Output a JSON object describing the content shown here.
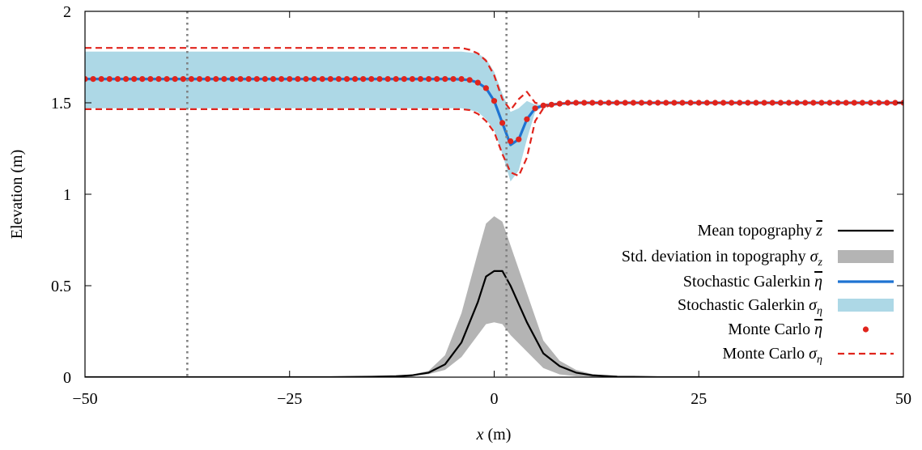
{
  "chart_data": {
    "type": "line",
    "xlabel_var": "x",
    "xlabel_unit": "(m)",
    "ylabel": "Elevation (m)",
    "xlim": [
      -50,
      50
    ],
    "ylim": [
      0,
      2
    ],
    "x_ticks": [
      -50,
      -25,
      0,
      25,
      50
    ],
    "x_tick_labels": [
      "−50",
      "−25",
      "0",
      "25",
      "50"
    ],
    "y_ticks": [
      0,
      0.5,
      1,
      1.5,
      2
    ],
    "y_tick_labels": [
      "0",
      "0.5",
      "1",
      "1.5",
      "2"
    ],
    "grid": false,
    "legend_position": "bottom-right",
    "vertical_lines_x": [
      -37.5,
      1.5
    ],
    "colors": {
      "mean_topography": "#000000",
      "std_topography": "#b4b4b4",
      "galerkin_mean": "#1e73d2",
      "galerkin_std": "#add8e6",
      "mc_mean": "#e0241c",
      "mc_std": "#e0241c",
      "vlines": "#808080"
    },
    "legend": [
      {
        "key": "mean_topography",
        "text": "Mean topography ",
        "sym": "z",
        "bar": true,
        "sub": ""
      },
      {
        "key": "std_topography",
        "text": "Std. deviation in topography ",
        "sym": "σ",
        "bar": false,
        "sub": "z"
      },
      {
        "key": "galerkin_mean",
        "text": "Stochastic Galerkin ",
        "sym": "η",
        "bar": true,
        "sub": ""
      },
      {
        "key": "galerkin_std",
        "text": "Stochastic Galerkin ",
        "sym": "σ",
        "bar": false,
        "sub": "η"
      },
      {
        "key": "mc_mean",
        "text": "Monte Carlo ",
        "sym": "η",
        "bar": true,
        "sub": ""
      },
      {
        "key": "mc_std",
        "text": "Monte Carlo ",
        "sym": "σ",
        "bar": false,
        "sub": "η"
      }
    ],
    "series": {
      "mean_topography": {
        "x": [
          -50,
          -20,
          -15,
          -12,
          -10,
          -8,
          -6,
          -4,
          -2,
          -1,
          0,
          1,
          2,
          4,
          6,
          8,
          10,
          12,
          15,
          20,
          50
        ],
        "y": [
          0,
          0,
          0.002,
          0.005,
          0.01,
          0.025,
          0.07,
          0.19,
          0.41,
          0.55,
          0.58,
          0.58,
          0.5,
          0.3,
          0.13,
          0.06,
          0.025,
          0.01,
          0.003,
          0,
          0
        ]
      },
      "std_topography": {
        "x": [
          -50,
          -20,
          -15,
          -12,
          -10,
          -8,
          -6,
          -4,
          -2,
          -1,
          0,
          1,
          2,
          4,
          6,
          8,
          10,
          12,
          15,
          20,
          50
        ],
        "lower": [
          0,
          0,
          0.001,
          0.003,
          0.007,
          0.017,
          0.04,
          0.11,
          0.23,
          0.29,
          0.3,
          0.29,
          0.23,
          0.14,
          0.05,
          0.015,
          0.005,
          0.002,
          0,
          0,
          0
        ],
        "upper": [
          0,
          0,
          0.003,
          0.008,
          0.015,
          0.035,
          0.12,
          0.35,
          0.68,
          0.84,
          0.88,
          0.85,
          0.72,
          0.46,
          0.2,
          0.09,
          0.04,
          0.017,
          0.005,
          0,
          0
        ]
      },
      "galerkin_mean": {
        "x": [
          -50,
          -5,
          -3,
          -2,
          -1,
          0,
          1,
          2,
          3,
          4,
          5,
          6,
          7,
          8,
          10,
          50
        ],
        "y": [
          1.63,
          1.63,
          1.625,
          1.61,
          1.58,
          1.51,
          1.39,
          1.27,
          1.3,
          1.41,
          1.47,
          1.485,
          1.49,
          1.495,
          1.5,
          1.5
        ]
      },
      "galerkin_std": {
        "x": [
          -50,
          -4,
          -2,
          -1,
          0,
          1,
          2,
          3,
          4,
          5,
          6,
          7,
          8,
          10,
          50
        ],
        "lower": [
          1.47,
          1.47,
          1.45,
          1.41,
          1.35,
          1.22,
          1.07,
          1.13,
          1.3,
          1.45,
          1.48,
          1.49,
          1.495,
          1.5,
          1.5
        ],
        "upper": [
          1.78,
          1.78,
          1.77,
          1.74,
          1.67,
          1.55,
          1.45,
          1.47,
          1.51,
          1.49,
          1.49,
          1.49,
          1.495,
          1.5,
          1.5
        ]
      },
      "mc_mean": {
        "x": [
          -50,
          -49,
          -48,
          -47,
          -46,
          -45,
          -44,
          -43,
          -42,
          -41,
          -40,
          -39,
          -38,
          -37,
          -36,
          -35,
          -34,
          -33,
          -32,
          -31,
          -30,
          -29,
          -28,
          -27,
          -26,
          -25,
          -24,
          -23,
          -22,
          -21,
          -20,
          -19,
          -18,
          -17,
          -16,
          -15,
          -14,
          -13,
          -12,
          -11,
          -10,
          -9,
          -8,
          -7,
          -6,
          -5,
          -4,
          -3,
          -2,
          -1,
          0,
          1,
          2,
          3,
          4,
          5,
          6,
          7,
          8,
          9,
          10,
          11,
          12,
          13,
          14,
          15,
          16,
          17,
          18,
          19,
          20,
          21,
          22,
          23,
          24,
          25,
          26,
          27,
          28,
          29,
          30,
          31,
          32,
          33,
          34,
          35,
          36,
          37,
          38,
          39,
          40,
          41,
          42,
          43,
          44,
          45,
          46,
          47,
          48,
          49,
          50
        ],
        "y": [
          1.63,
          1.63,
          1.63,
          1.63,
          1.63,
          1.63,
          1.63,
          1.63,
          1.63,
          1.63,
          1.63,
          1.63,
          1.63,
          1.63,
          1.63,
          1.63,
          1.63,
          1.63,
          1.63,
          1.63,
          1.63,
          1.63,
          1.63,
          1.63,
          1.63,
          1.63,
          1.63,
          1.63,
          1.63,
          1.63,
          1.63,
          1.63,
          1.63,
          1.63,
          1.63,
          1.63,
          1.63,
          1.63,
          1.63,
          1.63,
          1.63,
          1.63,
          1.63,
          1.63,
          1.63,
          1.63,
          1.63,
          1.625,
          1.61,
          1.58,
          1.51,
          1.39,
          1.29,
          1.3,
          1.41,
          1.47,
          1.485,
          1.49,
          1.495,
          1.5,
          1.5,
          1.5,
          1.5,
          1.5,
          1.5,
          1.5,
          1.5,
          1.5,
          1.5,
          1.5,
          1.5,
          1.5,
          1.5,
          1.5,
          1.5,
          1.5,
          1.5,
          1.5,
          1.5,
          1.5,
          1.5,
          1.5,
          1.5,
          1.5,
          1.5,
          1.5,
          1.5,
          1.5,
          1.5,
          1.5,
          1.5,
          1.5,
          1.5,
          1.5,
          1.5,
          1.5,
          1.5,
          1.5,
          1.5,
          1.5,
          1.5
        ]
      },
      "mc_std": {
        "x": [
          -50,
          -4,
          -3,
          -2,
          -1,
          0,
          1,
          2,
          3,
          4,
          5,
          6,
          7,
          8,
          10,
          50
        ],
        "lower": [
          1.465,
          1.465,
          1.46,
          1.44,
          1.4,
          1.34,
          1.22,
          1.12,
          1.1,
          1.2,
          1.4,
          1.47,
          1.49,
          1.495,
          1.5,
          1.5
        ],
        "upper": [
          1.8,
          1.8,
          1.79,
          1.77,
          1.73,
          1.65,
          1.52,
          1.46,
          1.52,
          1.56,
          1.5,
          1.49,
          1.49,
          1.495,
          1.5,
          1.5
        ]
      }
    }
  }
}
